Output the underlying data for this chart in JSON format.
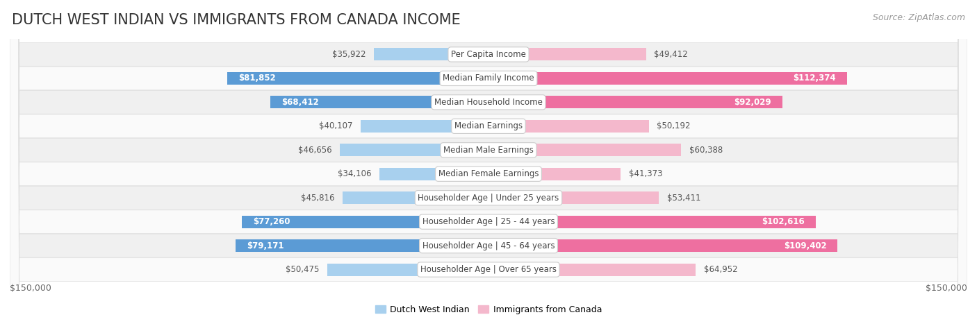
{
  "title": "DUTCH WEST INDIAN VS IMMIGRANTS FROM CANADA INCOME",
  "source": "Source: ZipAtlas.com",
  "categories": [
    "Per Capita Income",
    "Median Family Income",
    "Median Household Income",
    "Median Earnings",
    "Median Male Earnings",
    "Median Female Earnings",
    "Householder Age | Under 25 years",
    "Householder Age | 25 - 44 years",
    "Householder Age | 45 - 64 years",
    "Householder Age | Over 65 years"
  ],
  "dutch_values": [
    35922,
    81852,
    68412,
    40107,
    46656,
    34106,
    45816,
    77260,
    79171,
    50475
  ],
  "canada_values": [
    49412,
    112374,
    92029,
    50192,
    60388,
    41373,
    53411,
    102616,
    109402,
    64952
  ],
  "dutch_color_light": "#A8D0EE",
  "dutch_color_dark": "#5B9BD5",
  "canada_color_light": "#F4B8CC",
  "canada_color_dark": "#EE6FA0",
  "row_bg_even": "#F0F0F0",
  "row_bg_odd": "#FAFAFA",
  "max_value": 150000,
  "legend_dutch": "Dutch West Indian",
  "legend_canada": "Immigrants from Canada",
  "xlabel_left": "$150,000",
  "xlabel_right": "$150,000",
  "background_color": "#FFFFFF",
  "title_fontsize": 15,
  "source_fontsize": 9,
  "bar_height": 0.52,
  "dutch_dark_threshold": 60000,
  "canada_dark_threshold": 75000,
  "label_fontsize": 8.5,
  "value_fontsize": 8.5,
  "legend_fontsize": 9
}
